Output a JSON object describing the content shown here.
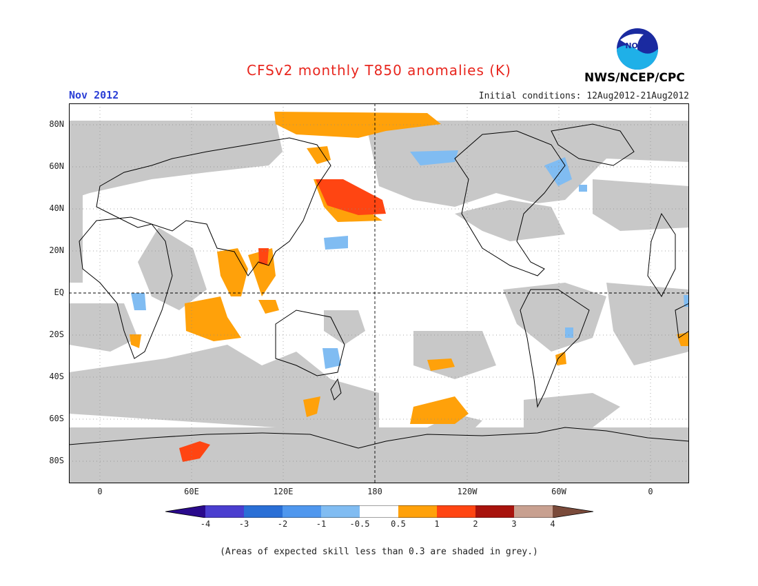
{
  "title": "CFSv2 monthly T850 anomalies (K)",
  "month": "Nov 2012",
  "initial_conditions": "Initial conditions: 12Aug2012-21Aug2012",
  "agency": "NWS/NCEP/CPC",
  "logo_text": "NOAA",
  "lat_labels": [
    "80N",
    "60N",
    "40N",
    "20N",
    "EQ",
    "20S",
    "40S",
    "60S",
    "80S"
  ],
  "lon_labels": [
    "0",
    "60E",
    "120E",
    "180",
    "120W",
    "60W",
    "0"
  ],
  "colorbar": {
    "labels": [
      "-4",
      "-3",
      "-2",
      "-1",
      "-0.5",
      "0.5",
      "1",
      "2",
      "3",
      "4"
    ],
    "colors": [
      "#2a0a8c",
      "#4a3ecf",
      "#2a6fd6",
      "#4f97ee",
      "#80bcf2",
      "#ffffff",
      "#ffa10a",
      "#ff4512",
      "#a8130d",
      "#c8a090",
      "#7a4a3a"
    ]
  },
  "note": "(Areas of expected skill less than 0.3 are shaded in grey.)",
  "colors": {
    "skill_grey": "#c8c8c8",
    "ocean_white": "#ffffff",
    "title_red": "#e8261e",
    "month_blue": "#2b3fd6"
  }
}
